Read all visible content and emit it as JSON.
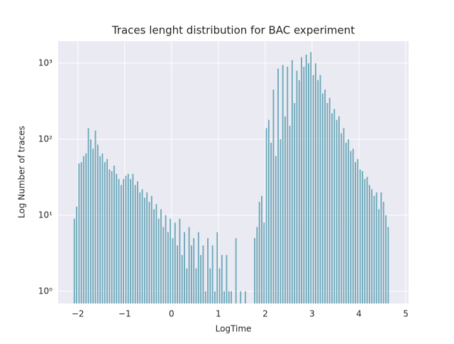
{
  "chart_data": {
    "type": "histogram",
    "title": "Traces lenght distribution for BAC experiment",
    "x_label": "LogTime",
    "y_label": "Log Number of traces",
    "color": "#6aa7b8",
    "log_y": true,
    "grid": true,
    "bins": [
      -2.1,
      -2.05,
      -2,
      -1.95,
      -1.9,
      -1.85,
      -1.8,
      -1.75,
      -1.7,
      -1.65,
      -1.6,
      -1.55,
      -1.5,
      -1.45,
      -1.4,
      -1.35,
      -1.3,
      -1.25,
      -1.2,
      -1.15,
      -1.1,
      -1.05,
      -1,
      -0.95,
      -0.9,
      -0.85,
      -0.8,
      -0.75,
      -0.7,
      -0.65,
      -0.6,
      -0.55,
      -0.5,
      -0.45,
      -0.4,
      -0.35,
      -0.3,
      -0.25,
      -0.2,
      -0.15,
      -0.1,
      -0.05,
      0,
      0.05,
      0.1,
      0.15,
      0.2,
      0.25,
      0.3,
      0.35,
      0.4,
      0.45,
      0.5,
      0.55,
      0.6,
      0.65,
      0.7,
      0.75,
      0.8,
      0.85,
      0.9,
      0.95,
      1,
      1.05,
      1.1,
      1.15,
      1.2,
      1.25,
      1.3,
      1.35,
      1.4,
      1.45,
      1.5,
      1.55,
      1.6,
      1.65,
      1.7,
      1.75,
      1.8,
      1.85,
      1.9,
      1.95,
      2,
      2.05,
      2.1,
      2.15,
      2.2,
      2.25,
      2.3,
      2.35,
      2.4,
      2.45,
      2.5,
      2.55,
      2.6,
      2.65,
      2.7,
      2.75,
      2.8,
      2.85,
      2.9,
      2.95,
      3,
      3.05,
      3.1,
      3.15,
      3.2,
      3.25,
      3.3,
      3.35,
      3.4,
      3.45,
      3.5,
      3.55,
      3.6,
      3.65,
      3.7,
      3.75,
      3.8,
      3.85,
      3.9,
      3.95,
      4,
      4.05,
      4.1,
      4.15,
      4.2,
      4.25,
      4.3,
      4.35,
      4.4,
      4.45,
      4.5,
      4.55,
      4.6,
      4.65
    ],
    "values": [
      9,
      13,
      48,
      50,
      60,
      65,
      140,
      100,
      75,
      130,
      85,
      60,
      65,
      50,
      55,
      40,
      38,
      45,
      35,
      30,
      25,
      30,
      33,
      35,
      30,
      35,
      25,
      28,
      20,
      22,
      17,
      20,
      15,
      18,
      12,
      14,
      9,
      12,
      7,
      10,
      6,
      9,
      5,
      8,
      4,
      9,
      3,
      6,
      2,
      7,
      4,
      5,
      2,
      6,
      3,
      4,
      1,
      5,
      2,
      4,
      1,
      6,
      2,
      3,
      1,
      3,
      1,
      1,
      0,
      5,
      0,
      1,
      0,
      1,
      0,
      0,
      0,
      5,
      7,
      15,
      18,
      8,
      140,
      180,
      90,
      450,
      60,
      850,
      100,
      950,
      200,
      900,
      150,
      1100,
      300,
      800,
      600,
      1200,
      900,
      1300,
      1000,
      1400,
      700,
      1000,
      600,
      700,
      400,
      450,
      300,
      350,
      220,
      250,
      180,
      200,
      120,
      140,
      90,
      100,
      70,
      75,
      50,
      55,
      40,
      38,
      30,
      32,
      25,
      22,
      18,
      20,
      12,
      20,
      15,
      10,
      7
    ],
    "xlim": [
      -2.42,
      5.06
    ],
    "ylim": [
      0.69,
      1950
    ],
    "xticks": [
      {
        "value": -2,
        "label": "−2"
      },
      {
        "value": -1,
        "label": "−1"
      },
      0,
      1,
      2,
      3,
      4,
      5
    ],
    "yticks": [
      {
        "value": 1,
        "label": "10⁰"
      },
      {
        "value": 10,
        "label": "10¹"
      },
      {
        "value": 100,
        "label": "10²"
      },
      {
        "value": 1000,
        "label": "10³"
      }
    ]
  }
}
